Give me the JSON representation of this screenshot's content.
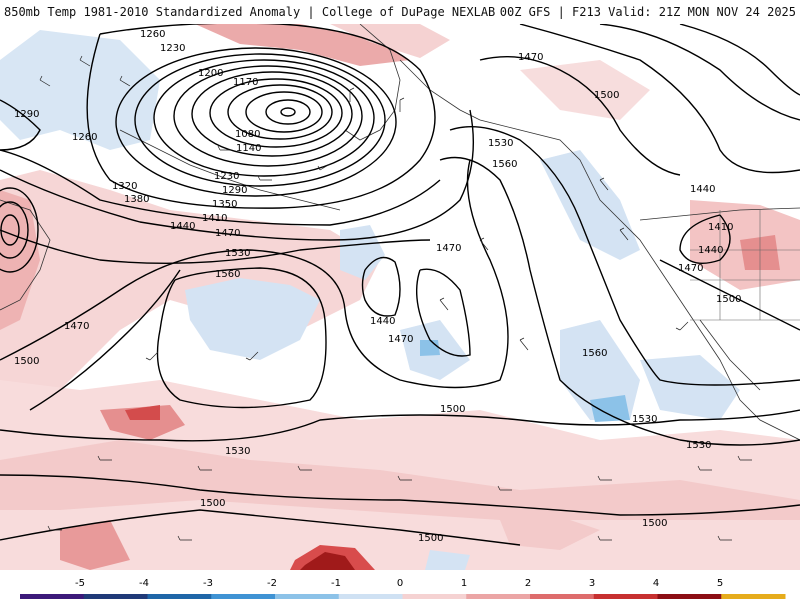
{
  "header": {
    "left": "850mb Temp 1981-2010 Standardized Anomaly | College of DuPage NEXLAB",
    "right": "00Z GFS | F213 Valid: 21Z MON NOV 24 2025"
  },
  "contours": [
    {
      "label": "1260"
    },
    {
      "label": "1230"
    },
    {
      "label": "1200"
    },
    {
      "label": "1170"
    },
    {
      "label": "1080"
    },
    {
      "label": "1140"
    },
    {
      "label": "1290"
    },
    {
      "label": "1260"
    },
    {
      "label": "1320"
    },
    {
      "label": "1380"
    },
    {
      "label": "1230"
    },
    {
      "label": "1290"
    },
    {
      "label": "1350"
    },
    {
      "label": "1410"
    },
    {
      "label": "1440"
    },
    {
      "label": "1470"
    },
    {
      "label": "1530"
    },
    {
      "label": "1560"
    },
    {
      "label": "1470"
    },
    {
      "label": "1500"
    },
    {
      "label": "1440"
    },
    {
      "label": "1470"
    },
    {
      "label": "1500"
    },
    {
      "label": "1530"
    },
    {
      "label": "1500"
    },
    {
      "label": "1500"
    },
    {
      "label": "1500"
    },
    {
      "label": "1470"
    },
    {
      "label": "1500"
    },
    {
      "label": "1530"
    },
    {
      "label": "1560"
    },
    {
      "label": "1470"
    },
    {
      "label": "1560"
    },
    {
      "label": "1530"
    },
    {
      "label": "1530"
    },
    {
      "label": "1440"
    },
    {
      "label": "1410"
    },
    {
      "label": "1440"
    },
    {
      "label": "1470"
    },
    {
      "label": "1500"
    }
  ],
  "colorbar": {
    "ticks": [
      "-5",
      "-4",
      "-3",
      "-2",
      "-1",
      "0",
      "1",
      "2",
      "3",
      "4",
      "5"
    ],
    "colors": [
      "#3c1a7a",
      "#203a78",
      "#1f66a8",
      "#3f93d4",
      "#8cc2e8",
      "#cfe1f3",
      "#f5d2d2",
      "#eba5a5",
      "#de6c6c",
      "#c73030",
      "#8c0e14",
      "#e6ac1c"
    ]
  }
}
